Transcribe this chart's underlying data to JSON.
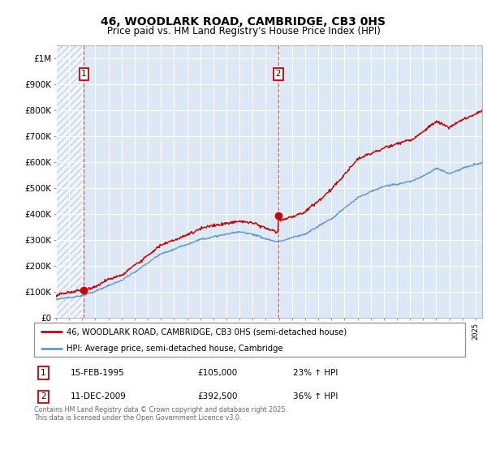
{
  "title_line1": "46, WOODLARK ROAD, CAMBRIDGE, CB3 0HS",
  "title_line2": "Price paid vs. HM Land Registry's House Price Index (HPI)",
  "ylim": [
    0,
    1050000
  ],
  "yticks": [
    0,
    100000,
    200000,
    300000,
    400000,
    500000,
    600000,
    700000,
    800000,
    900000,
    1000000
  ],
  "ytick_labels": [
    "£0",
    "£100K",
    "£200K",
    "£300K",
    "£400K",
    "£500K",
    "£600K",
    "£700K",
    "£800K",
    "£900K",
    "£1M"
  ],
  "xlim_start": 1993.0,
  "xlim_end": 2025.5,
  "background_color": "#dce9f5",
  "sale1_date": 1995.12,
  "sale1_price": 105000,
  "sale1_label": "1",
  "sale2_date": 2009.95,
  "sale2_price": 392500,
  "sale2_label": "2",
  "line_color_red": "#cc0000",
  "line_color_blue": "#6699cc",
  "dot_color": "#cc0000",
  "legend_label_red": "46, WOODLARK ROAD, CAMBRIDGE, CB3 0HS (semi-detached house)",
  "legend_label_blue": "HPI: Average price, semi-detached house, Cambridge",
  "annotation1_date": "15-FEB-1995",
  "annotation1_price": "£105,000",
  "annotation1_hpi": "23% ↑ HPI",
  "annotation2_date": "11-DEC-2009",
  "annotation2_price": "£392,500",
  "annotation2_hpi": "36% ↑ HPI",
  "footer": "Contains HM Land Registry data © Crown copyright and database right 2025.\nThis data is licensed under the Open Government Licence v3.0."
}
